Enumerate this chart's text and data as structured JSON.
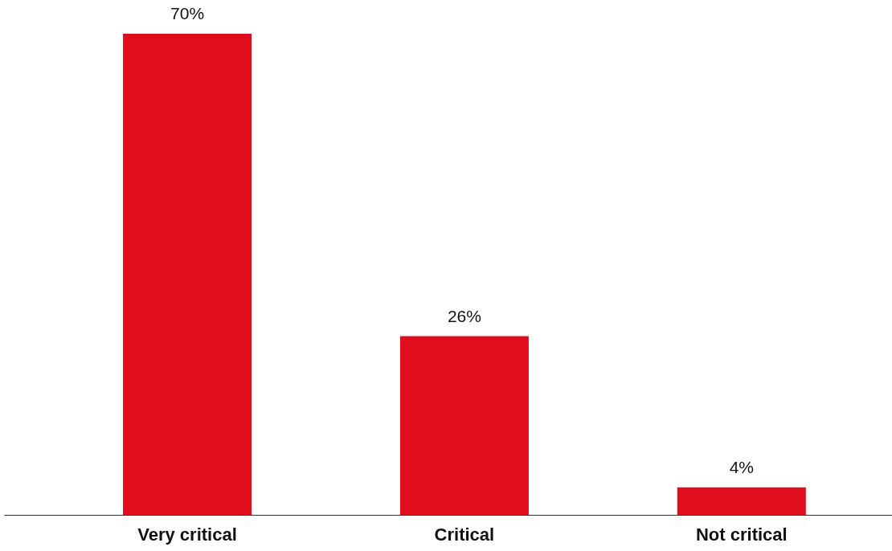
{
  "chart_data": {
    "type": "bar",
    "categories": [
      "Very critical",
      "Critical",
      "Not critical"
    ],
    "values": [
      70,
      26,
      4
    ],
    "value_labels": [
      "70%",
      "26%",
      "4%"
    ],
    "color": "#e00d1d",
    "grid": false
  }
}
